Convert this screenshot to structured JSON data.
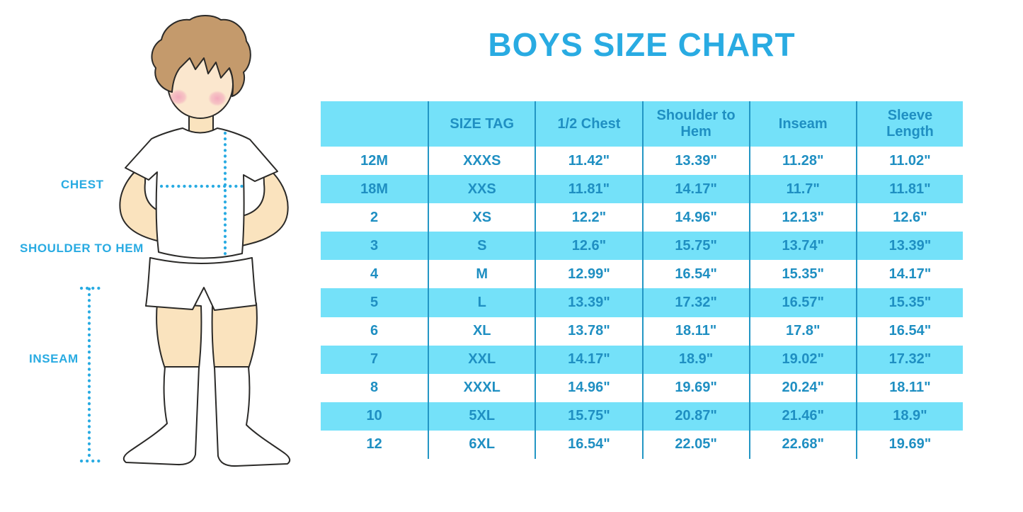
{
  "page": {
    "title": "BOYS SIZE CHART"
  },
  "colors": {
    "accent": "#29ABE2",
    "table_row_cyan": "#74E1F9",
    "table_text": "#1F8FC2",
    "table_divider": "#2396C4",
    "skin": "#FAE3BE",
    "hair": "#C49A6C"
  },
  "figure": {
    "labels": {
      "chest": "CHEST",
      "shoulder_to_hem": "SHOULDER TO HEM",
      "inseam": "INSEAM"
    }
  },
  "table": {
    "columns": [
      "",
      "SIZE TAG",
      "1/2 Chest",
      "Shoulder to Hem",
      "Inseam",
      "Sleeve Length"
    ],
    "rows": [
      [
        "12M",
        "XXXS",
        "11.42\"",
        "13.39\"",
        "11.28\"",
        "11.02\""
      ],
      [
        "18M",
        "XXS",
        "11.81\"",
        "14.17\"",
        "11.7\"",
        "11.81\""
      ],
      [
        "2",
        "XS",
        "12.2\"",
        "14.96\"",
        "12.13\"",
        "12.6\""
      ],
      [
        "3",
        "S",
        "12.6\"",
        "15.75\"",
        "13.74\"",
        "13.39\""
      ],
      [
        "4",
        "M",
        "12.99\"",
        "16.54\"",
        "15.35\"",
        "14.17\""
      ],
      [
        "5",
        "L",
        "13.39\"",
        "17.32\"",
        "16.57\"",
        "15.35\""
      ],
      [
        "6",
        "XL",
        "13.78\"",
        "18.11\"",
        "17.8\"",
        "16.54\""
      ],
      [
        "7",
        "XXL",
        "14.17\"",
        "18.9\"",
        "19.02\"",
        "17.32\""
      ],
      [
        "8",
        "XXXL",
        "14.96\"",
        "19.69\"",
        "20.24\"",
        "18.11\""
      ],
      [
        "10",
        "5XL",
        "15.75\"",
        "20.87\"",
        "21.46\"",
        "18.9\""
      ],
      [
        "12",
        "6XL",
        "16.54\"",
        "22.05\"",
        "22.68\"",
        "19.69\""
      ]
    ]
  }
}
